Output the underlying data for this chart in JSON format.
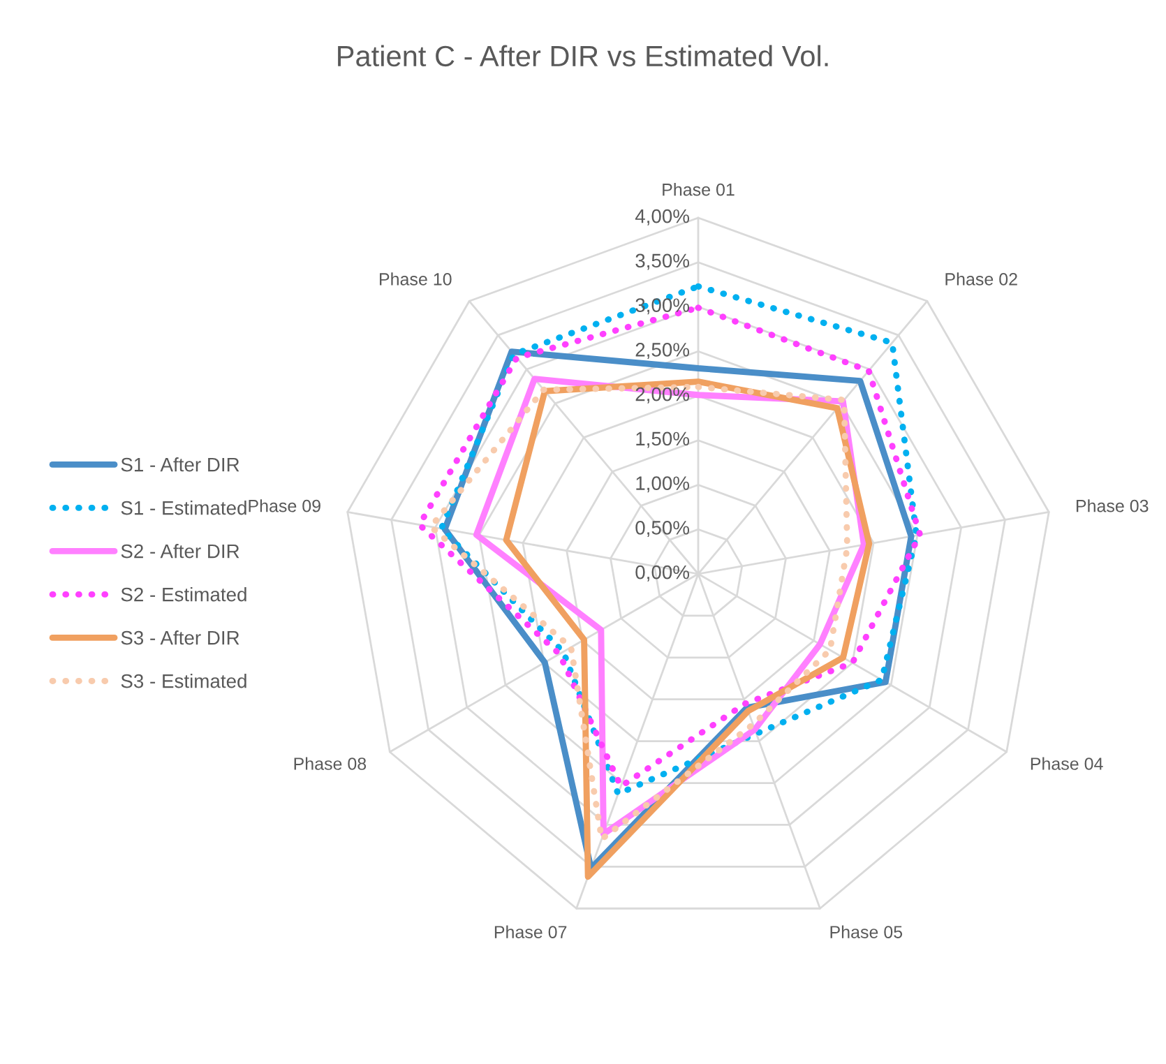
{
  "chart_data": {
    "type": "radar",
    "title": "Patient C - After DIR vs Estimated Vol.",
    "categories": [
      "Phase 01",
      "Phase 02",
      "Phase 03",
      "Phase 04",
      "Phase 05",
      "Phase 07",
      "Phase 08",
      "Phase 09",
      "Phase 10"
    ],
    "ylim": [
      0,
      4
    ],
    "yticks": [
      {
        "value": 0,
        "label": "0,00%"
      },
      {
        "value": 0.5,
        "label": "0,50%"
      },
      {
        "value": 1,
        "label": "1,00%"
      },
      {
        "value": 1.5,
        "label": "1,50%"
      },
      {
        "value": 2,
        "label": "2,00%"
      },
      {
        "value": 2.5,
        "label": "2,50%"
      },
      {
        "value": 3,
        "label": "3,00%"
      },
      {
        "value": 3.5,
        "label": "3,50%"
      },
      {
        "value": 4,
        "label": "4,00%"
      }
    ],
    "grid": true,
    "legend": "left",
    "series": [
      {
        "name": "S1 - After DIR",
        "color": "#4a8ec8",
        "line_style": "solid",
        "values": [
          2.31,
          2.83,
          2.43,
          2.43,
          1.6,
          3.52,
          1.99,
          2.89,
          3.26
        ]
      },
      {
        "name": "S1 - Estimated",
        "color": "#00b0f0",
        "line_style": "dotted",
        "values": [
          3.23,
          3.39,
          2.49,
          2.38,
          1.91,
          2.63,
          1.75,
          2.93,
          3.22
        ]
      },
      {
        "name": "S2 - After DIR",
        "color": "#ff80ff",
        "line_style": "solid",
        "values": [
          2.01,
          2.53,
          1.89,
          1.58,
          1.86,
          3.11,
          1.26,
          2.53,
          2.86
        ]
      },
      {
        "name": "S2 - Estimated",
        "color": "#ff40ff",
        "line_style": "dotted",
        "values": [
          2.99,
          2.98,
          2.53,
          2.0,
          1.55,
          2.54,
          1.8,
          3.18,
          3.17
        ]
      },
      {
        "name": "S3 - After DIR",
        "color": "#f0a060",
        "line_style": "solid",
        "values": [
          2.16,
          2.43,
          1.95,
          1.88,
          1.64,
          3.62,
          1.48,
          2.19,
          2.68
        ]
      },
      {
        "name": "S3 - Estimated",
        "color": "#f8cbad",
        "line_style": "dotted",
        "values": [
          2.1,
          2.55,
          1.7,
          1.71,
          1.8,
          3.17,
          1.65,
          3.05,
          2.7
        ]
      }
    ]
  }
}
